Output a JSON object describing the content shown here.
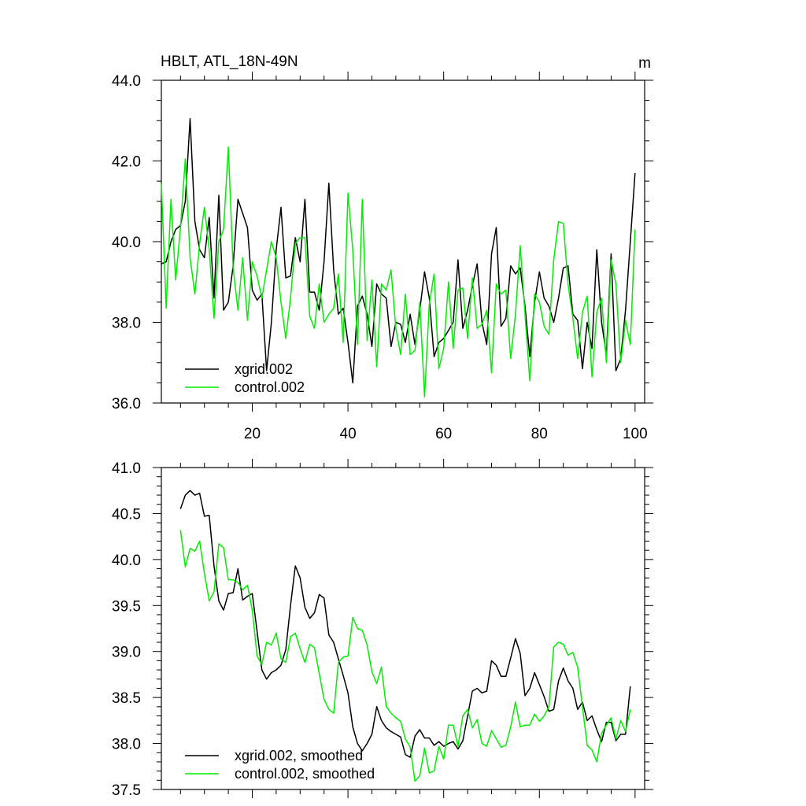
{
  "chart_data": [
    {
      "type": "line",
      "title": "HBLT, ATL_18N-49N",
      "units": "m",
      "xlim": [
        1,
        102
      ],
      "ylim": [
        36.0,
        44.0
      ],
      "x_ticks": [
        20,
        40,
        60,
        80,
        100
      ],
      "y_ticks": [
        "36.0",
        "38.0",
        "40.0",
        "42.0",
        "44.0"
      ],
      "legend_placement": "bottom-left",
      "series": [
        {
          "name": "xgrid.002",
          "color": "#000000",
          "x_start": 1,
          "values": [
            39.45,
            39.5,
            40.0,
            40.3,
            40.4,
            41.0,
            43.05,
            40.5,
            39.8,
            39.6,
            40.6,
            38.6,
            41.15,
            38.3,
            38.5,
            39.4,
            41.05,
            40.7,
            40.35,
            38.8,
            38.55,
            38.7,
            36.8,
            38.0,
            39.8,
            40.85,
            39.1,
            39.15,
            40.1,
            39.5,
            41.05,
            38.75,
            38.75,
            38.3,
            39.5,
            41.45,
            39.3,
            38.2,
            38.35,
            37.5,
            36.5,
            38.4,
            38.65,
            38.2,
            37.4,
            38.95,
            38.7,
            38.6,
            37.4,
            38.0,
            37.95,
            37.5,
            38.2,
            37.45,
            38.3,
            39.25,
            38.6,
            37.15,
            37.5,
            37.6,
            37.8,
            38.0,
            39.55,
            37.85,
            38.3,
            38.9,
            39.45,
            38.0,
            37.45,
            39.7,
            40.35,
            37.9,
            38.1,
            39.4,
            39.2,
            39.35,
            38.4,
            37.15,
            38.5,
            39.25,
            38.6,
            38.4,
            38.0,
            38.6,
            39.35,
            39.4,
            38.2,
            38.05,
            36.85,
            38.0,
            37.35,
            39.8,
            38.0,
            37.2,
            39.7,
            36.8,
            37.1,
            38.3,
            40.0,
            41.7
          ]
        },
        {
          "name": "control.002",
          "color": "#00ee00",
          "x_start": 1,
          "values": [
            41.45,
            38.35,
            41.05,
            39.05,
            40.35,
            42.05,
            39.6,
            38.7,
            39.95,
            40.85,
            39.8,
            38.1,
            40.0,
            40.3,
            42.35,
            39.35,
            38.3,
            39.6,
            38.05,
            39.5,
            39.15,
            38.6,
            39.3,
            40.0,
            39.6,
            38.5,
            37.6,
            38.6,
            39.95,
            40.1,
            40.1,
            38.15,
            37.85,
            38.95,
            38.0,
            38.2,
            38.35,
            39.2,
            37.5,
            41.2,
            39.8,
            37.45,
            41.05,
            37.55,
            39.05,
            36.9,
            38.95,
            38.8,
            39.3,
            37.85,
            37.2,
            38.7,
            37.2,
            37.3,
            38.5,
            36.15,
            38.45,
            39.2,
            36.85,
            37.35,
            39.0,
            37.35,
            38.8,
            38.85,
            37.6,
            39.1,
            37.85,
            37.95,
            38.3,
            36.75,
            38.95,
            38.7,
            38.8,
            37.1,
            38.2,
            39.9,
            38.2,
            36.55,
            38.7,
            38.5,
            37.9,
            37.7,
            39.55,
            40.5,
            40.45,
            38.95,
            38.1,
            37.1,
            38.25,
            38.65,
            36.65,
            38.25,
            38.6,
            37.0,
            39.55,
            38.95,
            37.0,
            38.05,
            37.45,
            40.3
          ]
        }
      ]
    },
    {
      "type": "line",
      "title": "",
      "xlim": [
        1,
        102
      ],
      "ylim": [
        37.5,
        41.0
      ],
      "y_ticks": [
        "37.5",
        "38.0",
        "38.5",
        "39.0",
        "39.5",
        "40.0",
        "40.5",
        "41.0"
      ],
      "legend_placement": "bottom-left",
      "series": [
        {
          "name": "xgrid.002, smoothed",
          "color": "#000000",
          "x_start": 5,
          "values": [
            40.55,
            40.7,
            40.75,
            40.7,
            40.72,
            40.47,
            40.48,
            39.93,
            39.55,
            39.45,
            39.63,
            39.64,
            39.9,
            39.56,
            39.6,
            39.63,
            39.22,
            38.8,
            38.7,
            38.77,
            38.8,
            38.85,
            39.02,
            39.5,
            39.93,
            39.8,
            39.48,
            39.36,
            39.42,
            39.62,
            39.58,
            39.18,
            39.1,
            38.92,
            38.74,
            38.55,
            38.18,
            38.0,
            37.92,
            38.0,
            38.1,
            38.4,
            38.25,
            38.17,
            38.13,
            38.1,
            38.07,
            37.88,
            37.85,
            38.08,
            38.15,
            38.06,
            38.06,
            37.98,
            38.02,
            37.97,
            38.0,
            38.02,
            37.94,
            38.03,
            38.3,
            38.57,
            38.6,
            38.55,
            38.57,
            38.9,
            38.85,
            38.73,
            38.73,
            38.93,
            39.14,
            38.98,
            38.52,
            38.6,
            38.77,
            38.64,
            38.51,
            38.35,
            38.37,
            38.68,
            38.82,
            38.68,
            38.6,
            38.37,
            38.45,
            38.25,
            38.3,
            38.15,
            38.02,
            38.23,
            38.23,
            38.03,
            38.1,
            38.1,
            38.62
          ]
        },
        {
          "name": "control.002, smoothed",
          "color": "#00ee00",
          "x_start": 5,
          "values": [
            40.32,
            39.92,
            40.12,
            40.09,
            40.2,
            39.85,
            39.55,
            39.65,
            40.17,
            40.13,
            39.78,
            39.78,
            39.75,
            39.67,
            39.72,
            39.45,
            38.95,
            38.86,
            39.1,
            39.07,
            39.2,
            38.92,
            38.88,
            39.16,
            39.2,
            39.03,
            38.88,
            39.08,
            39.04,
            38.76,
            38.48,
            38.37,
            38.33,
            38.88,
            38.94,
            38.95,
            39.37,
            39.25,
            39.23,
            39.07,
            38.78,
            38.65,
            38.83,
            38.4,
            38.33,
            38.28,
            38.24,
            38.05,
            37.96,
            37.59,
            37.65,
            37.95,
            37.68,
            37.7,
            37.97,
            37.83,
            38.2,
            38.2,
            37.97,
            38.3,
            38.37,
            38.17,
            38.26,
            38.0,
            37.97,
            38.14,
            38.05,
            37.96,
            37.98,
            38.18,
            38.45,
            38.18,
            38.2,
            38.2,
            38.32,
            38.24,
            38.3,
            38.4,
            39.05,
            39.1,
            39.08,
            38.96,
            38.99,
            38.83,
            38.4,
            37.98,
            37.93,
            37.8,
            38.11,
            38.2,
            38.28,
            38.05,
            38.25,
            38.13,
            38.37
          ]
        }
      ]
    }
  ]
}
